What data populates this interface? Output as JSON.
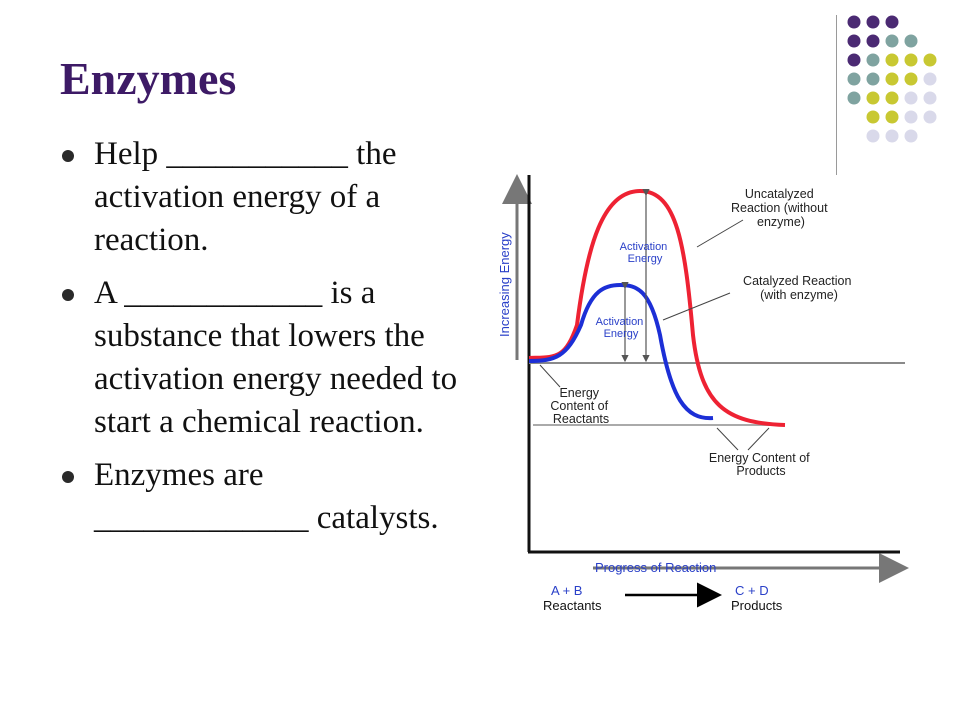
{
  "slide": {
    "title": "Enzymes",
    "bullets": [
      {
        "text": "Help ___________ the activation energy of a reaction."
      },
      {
        "text": "A ____________ is a substance that lowers the activation energy needed to start a chemical reaction."
      },
      {
        "text": "Enzymes are _____________ catalysts."
      }
    ]
  },
  "decoration": {
    "dot_colors": {
      "purple": "#4b2a73",
      "teal": "#7fa3a0",
      "olive": "#c8c832",
      "lavender": "#d9d9ea"
    },
    "dot_rows": [
      [
        "purple",
        "purple",
        "purple"
      ],
      [
        "purple",
        "purple",
        "teal",
        "teal"
      ],
      [
        "purple",
        "teal",
        "olive",
        "olive",
        "olive"
      ],
      [
        "teal",
        "teal",
        "olive",
        "olive",
        "lavender"
      ],
      [
        "teal",
        "olive",
        "olive",
        "lavender",
        "lavender"
      ],
      [
        "olive",
        "olive",
        "lavender",
        "lavender"
      ],
      [
        "lavender",
        "lavender",
        "lavender"
      ]
    ]
  },
  "diagram": {
    "y_axis_label": "Increasing Energy",
    "x_axis_label": "Progress of Reaction",
    "uncatalyzed_label": [
      "Uncatalyzed",
      "Reaction (without",
      "enzyme)"
    ],
    "catalyzed_label": [
      "Catalyzed Reaction",
      "(with enzyme)"
    ],
    "activation_energy_red": [
      "Activation",
      "Energy"
    ],
    "activation_energy_blue": [
      "Activation",
      "Energy"
    ],
    "reactants_energy_label": [
      "Energy",
      "Content of",
      "Reactants"
    ],
    "products_energy_label": [
      "Energy Content of",
      "Products"
    ],
    "reactants_formula": "A  +  B",
    "reactants_word": "Reactants",
    "products_formula": "C  +  D",
    "products_word": "Products",
    "colors": {
      "uncatalyzed": "#ee2233",
      "catalyzed": "#1c2fd6",
      "label_blue": "#2a40c8",
      "axis": "#111111",
      "level_line": "#8a8a8a"
    }
  }
}
